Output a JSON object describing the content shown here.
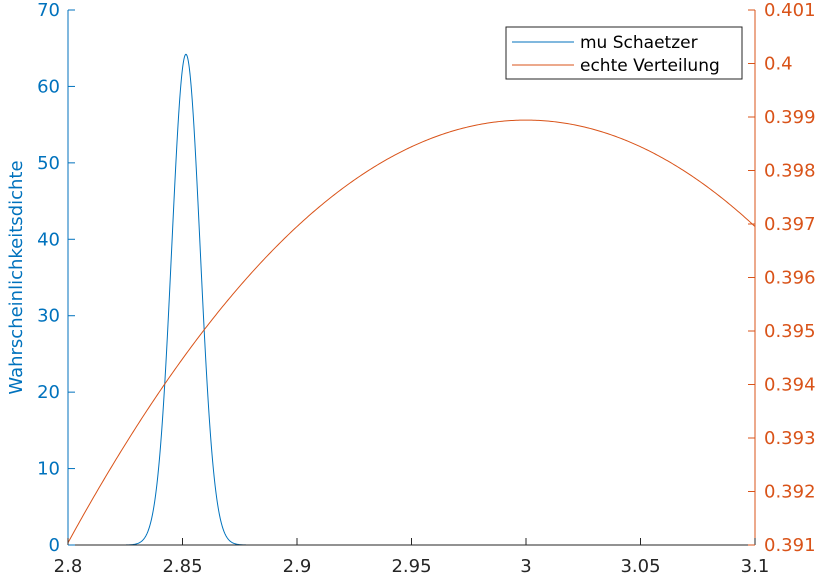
{
  "chart_data": {
    "type": "line",
    "title": "",
    "xlabel": "",
    "ylabel_left": "Wahrscheinlichkeitsdichte",
    "ylabel_right": "",
    "xlim": [
      2.8,
      3.1
    ],
    "ylim_left": [
      0,
      70
    ],
    "ylim_right": [
      0.391,
      0.401
    ],
    "x_ticks": [
      "2.8",
      "2.85",
      "2.9",
      "2.95",
      "3",
      "3.05",
      "3.1"
    ],
    "y_left_ticks": [
      "0",
      "10",
      "20",
      "30",
      "40",
      "50",
      "60",
      "70"
    ],
    "y_right_ticks": [
      "0.391",
      "0.392",
      "0.393",
      "0.394",
      "0.395",
      "0.396",
      "0.397",
      "0.398",
      "0.399",
      "0.4",
      "0.401"
    ],
    "grid": false,
    "legend_position": "top-right",
    "series": [
      {
        "name": "mu Schaetzer",
        "axis": "left",
        "color": "#0072BD",
        "shape": "gaussian",
        "mean": 2.8515,
        "sd": 0.0062,
        "peak": 64.2,
        "x_range": [
          2.82,
          2.88
        ]
      },
      {
        "name": "echte Verteilung",
        "axis": "right",
        "color": "#D95319",
        "shape": "normal-pdf",
        "mean": 3,
        "sd": 1,
        "x_range": [
          2.8,
          3.1
        ]
      }
    ]
  }
}
